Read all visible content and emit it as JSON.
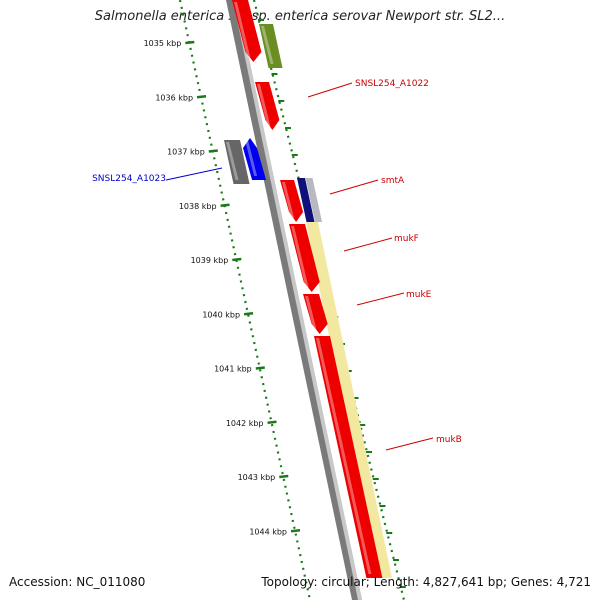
{
  "title": "Salmonella enterica subsp. enterica serovar Newport str. SL2...",
  "accession": "Accession: NC_011080",
  "topology": "Topology: circular; Length: 4,827,641 bp; Genes: 4,721",
  "colors": {
    "forward_gene": "#ee0000",
    "reverse_gene": "#0000ee",
    "gene_label_red": "#cc0000",
    "gene_label_blue": "#0000cc",
    "operon_shade": "#f3e8a0",
    "olive_gene": "#6b8e23",
    "tick_green": "#1a7a1a",
    "backbone": "#808080"
  },
  "scale": {
    "ticks": [
      {
        "label": "1035 kbp"
      },
      {
        "label": "1036 kbp"
      },
      {
        "label": "1037 kbp"
      },
      {
        "label": "1038 kbp"
      },
      {
        "label": "1039 kbp"
      },
      {
        "label": "1040 kbp"
      },
      {
        "label": "1041 kbp"
      },
      {
        "label": "1042 kbp"
      },
      {
        "label": "1043 kbp"
      },
      {
        "label": "1044 kbp"
      }
    ]
  },
  "gene_labels": [
    {
      "text": "SNSL254_A1022",
      "color": "#cc0000"
    },
    {
      "text": "SNSL254_A1023",
      "color": "#0000cc"
    },
    {
      "text": "smtA",
      "color": "#cc0000"
    },
    {
      "text": "mukF",
      "color": "#cc0000"
    },
    {
      "text": "mukE",
      "color": "#cc0000"
    },
    {
      "text": "mukB",
      "color": "#cc0000"
    }
  ]
}
